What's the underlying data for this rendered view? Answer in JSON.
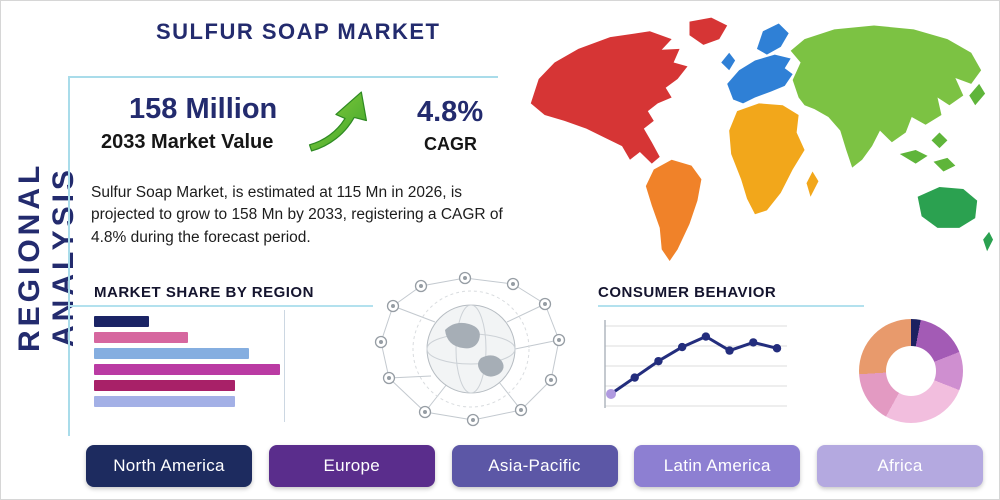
{
  "page": {
    "title": "SULFUR SOAP MARKET",
    "side_label": "REGIONAL ANALYSIS"
  },
  "stats": {
    "value": "158 Million",
    "value_label": "2033 Market Value",
    "cagr": "4.8%",
    "cagr_label": "CAGR",
    "description": "Sulfur Soap Market, is estimated at 115 Mn in 2026, is projected to grow to 158 Mn by 2033, registering a CAGR of 4.8% during the forecast period.",
    "arrow_color_top": "#8ed03c",
    "arrow_color_bottom": "#3aa32c"
  },
  "sections": {
    "market_share_title": "MARKET SHARE BY REGION",
    "consumer_behavior_title": "CONSUMER BEHAVIOR"
  },
  "regions": [
    {
      "label": "North America",
      "color": "#1d2b5f"
    },
    {
      "label": "Europe",
      "color": "#5a2d8c"
    },
    {
      "label": "Asia-Pacific",
      "color": "#5c57a6"
    },
    {
      "label": "Latin America",
      "color": "#8d7fd2"
    },
    {
      "label": "Africa",
      "color": "#b4a9e0"
    }
  ],
  "map": {
    "colors": {
      "north_america": "#d63535",
      "greenland": "#d63535",
      "south_america": "#f08229",
      "europe": "#2f80d6",
      "africa": "#f2a71b",
      "asia": "#7cc243",
      "islands": "#5fb53a",
      "australia": "#2ba150"
    }
  },
  "chart_data": [
    {
      "type": "bar",
      "title": "Market Share by Region",
      "orientation": "horizontal",
      "values": [
        20,
        34,
        56,
        67,
        51,
        51
      ],
      "xlim": [
        0,
        100
      ],
      "colors": [
        "#1b2465",
        "#d6679f",
        "#85aee0",
        "#ba3ba3",
        "#a82168",
        "#a3b0e6"
      ],
      "grid": true,
      "note": "category labels not shown in figure"
    },
    {
      "type": "line",
      "title": "Consumer Behavior",
      "x": [
        1,
        2,
        3,
        4,
        5,
        6,
        7,
        8
      ],
      "values": [
        1.2,
        2.6,
        4.0,
        5.2,
        6.1,
        4.9,
        5.6,
        5.1
      ],
      "ylim": [
        0,
        7
      ],
      "color": "#232d7d",
      "first_marker_color": "#b09ae0",
      "grid": true
    },
    {
      "type": "pie",
      "donut": true,
      "title": "Regional share donut",
      "slices": [
        {
          "color": "#1c2160",
          "value": 3
        },
        {
          "color": "#a35bb5",
          "value": 16
        },
        {
          "color": "#cf8fd0",
          "value": 12
        },
        {
          "color": "#f2bede",
          "value": 27
        },
        {
          "color": "#e39ac2",
          "value": 16
        },
        {
          "color": "#e89a6c",
          "value": 26
        }
      ]
    }
  ]
}
